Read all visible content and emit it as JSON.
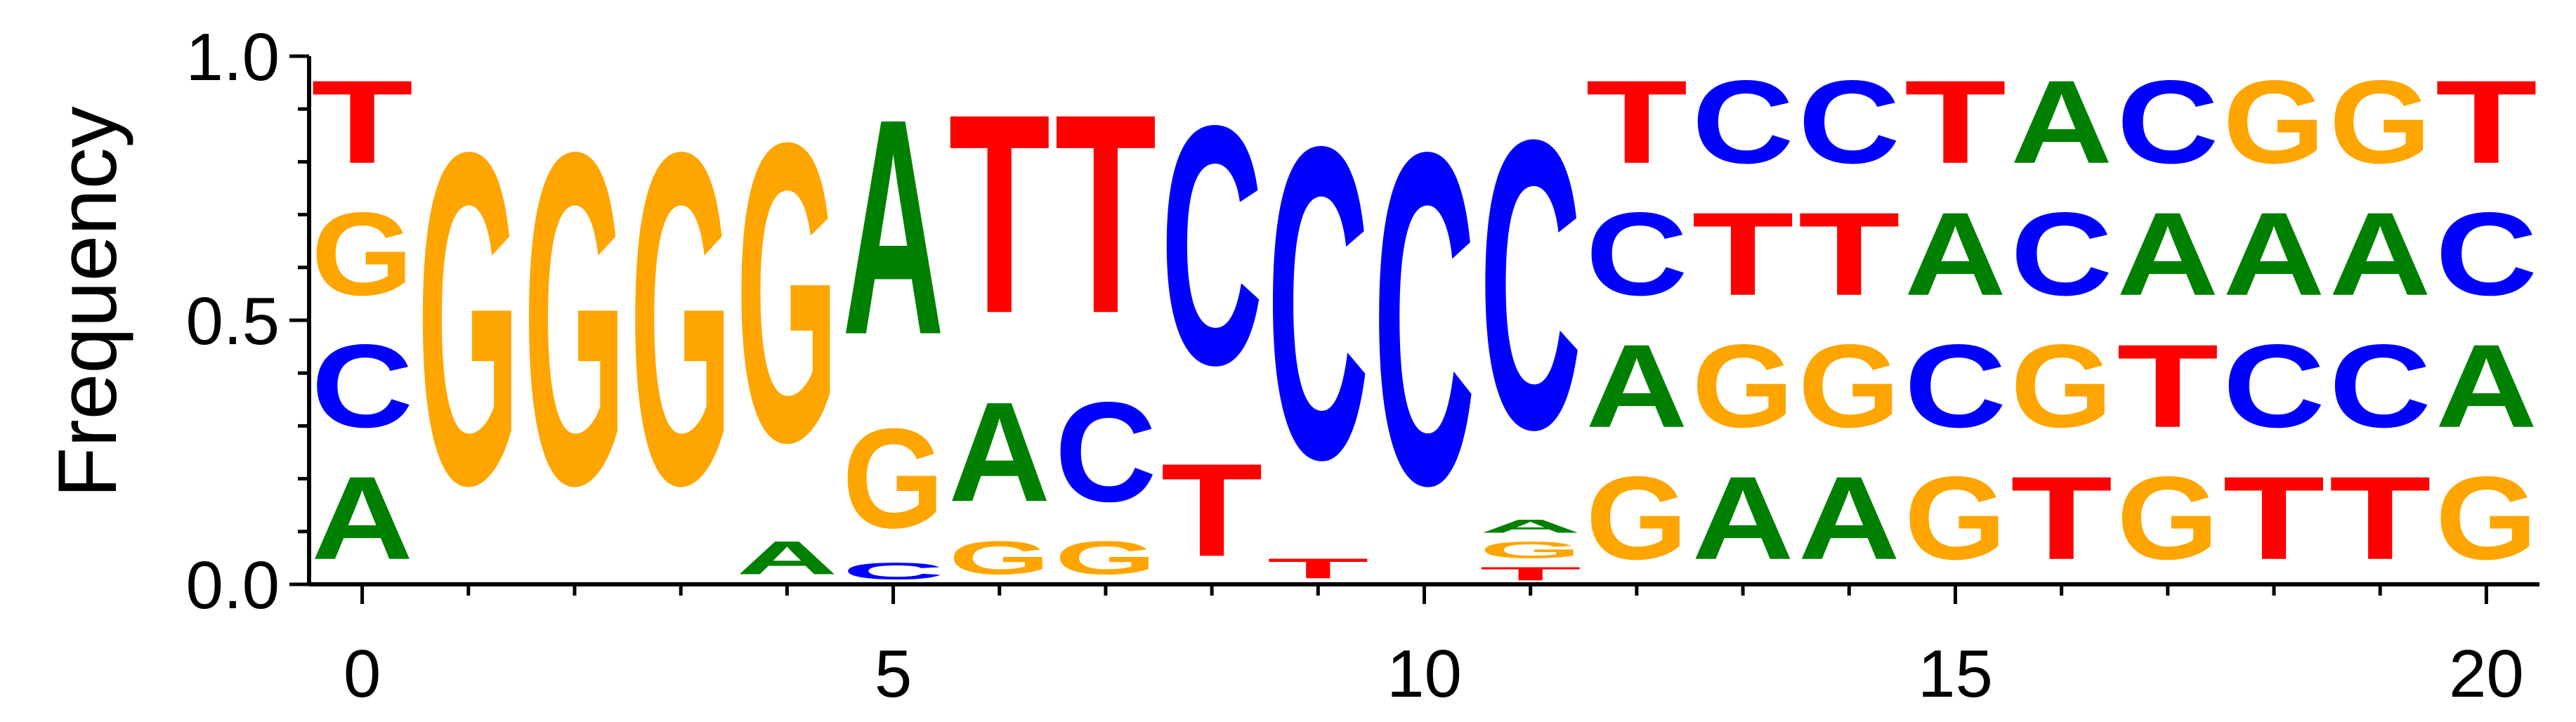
{
  "chart_data": {
    "type": "sequence-logo",
    "ylabel": "Frequency",
    "xlabel": "",
    "ylim": [
      0,
      1
    ],
    "xlim": [
      -0.5,
      20.5
    ],
    "y_ticks": [
      "0.0",
      "0.5",
      "1.0"
    ],
    "x_ticks": [
      "0",
      "5",
      "10",
      "15",
      "20"
    ],
    "colors": {
      "A": "#008000",
      "C": "#0000ff",
      "G": "#ffa500",
      "T": "#ff0000"
    },
    "positions": [
      {
        "pos": 0,
        "letters": [
          {
            "base": "A",
            "freq": 0.25
          },
          {
            "base": "C",
            "freq": 0.25
          },
          {
            "base": "G",
            "freq": 0.25
          },
          {
            "base": "T",
            "freq": 0.25
          }
        ]
      },
      {
        "pos": 1,
        "letters": [
          {
            "base": "G",
            "freq": 1.0
          }
        ]
      },
      {
        "pos": 2,
        "letters": [
          {
            "base": "G",
            "freq": 1.0
          }
        ]
      },
      {
        "pos": 3,
        "letters": [
          {
            "base": "G",
            "freq": 1.0
          }
        ]
      },
      {
        "pos": 4,
        "letters": [
          {
            "base": "A",
            "freq": 0.1
          },
          {
            "base": "G",
            "freq": 0.9
          }
        ]
      },
      {
        "pos": 5,
        "letters": [
          {
            "base": "C",
            "freq": 0.05
          },
          {
            "base": "G",
            "freq": 0.3
          },
          {
            "base": "A",
            "freq": 0.65
          }
        ]
      },
      {
        "pos": 6,
        "letters": [
          {
            "base": "G",
            "freq": 0.1
          },
          {
            "base": "A",
            "freq": 0.3
          },
          {
            "base": "T",
            "freq": 0.6
          }
        ]
      },
      {
        "pos": 7,
        "letters": [
          {
            "base": "G",
            "freq": 0.1
          },
          {
            "base": "C",
            "freq": 0.3
          },
          {
            "base": "T",
            "freq": 0.6
          }
        ]
      },
      {
        "pos": 8,
        "letters": [
          {
            "base": "T",
            "freq": 0.28
          },
          {
            "base": "C",
            "freq": 0.72
          }
        ]
      },
      {
        "pos": 9,
        "letters": [
          {
            "base": "T",
            "freq": 0.06
          },
          {
            "base": "C",
            "freq": 0.94
          }
        ]
      },
      {
        "pos": 10,
        "letters": [
          {
            "base": "C",
            "freq": 1.0
          }
        ]
      },
      {
        "pos": 11,
        "letters": [
          {
            "base": "T",
            "freq": 0.04
          },
          {
            "base": "G",
            "freq": 0.05
          },
          {
            "base": "A",
            "freq": 0.04
          },
          {
            "base": "C",
            "freq": 0.87
          }
        ]
      },
      {
        "pos": 12,
        "letters": [
          {
            "base": "G",
            "freq": 0.25
          },
          {
            "base": "A",
            "freq": 0.25
          },
          {
            "base": "C",
            "freq": 0.25
          },
          {
            "base": "T",
            "freq": 0.25
          }
        ]
      },
      {
        "pos": 13,
        "letters": [
          {
            "base": "A",
            "freq": 0.25
          },
          {
            "base": "G",
            "freq": 0.25
          },
          {
            "base": "T",
            "freq": 0.25
          },
          {
            "base": "C",
            "freq": 0.25
          }
        ]
      },
      {
        "pos": 14,
        "letters": [
          {
            "base": "A",
            "freq": 0.25
          },
          {
            "base": "G",
            "freq": 0.25
          },
          {
            "base": "T",
            "freq": 0.25
          },
          {
            "base": "C",
            "freq": 0.25
          }
        ]
      },
      {
        "pos": 15,
        "letters": [
          {
            "base": "G",
            "freq": 0.25
          },
          {
            "base": "C",
            "freq": 0.25
          },
          {
            "base": "A",
            "freq": 0.25
          },
          {
            "base": "T",
            "freq": 0.25
          }
        ]
      },
      {
        "pos": 16,
        "letters": [
          {
            "base": "T",
            "freq": 0.25
          },
          {
            "base": "G",
            "freq": 0.25
          },
          {
            "base": "C",
            "freq": 0.25
          },
          {
            "base": "A",
            "freq": 0.25
          }
        ]
      },
      {
        "pos": 17,
        "letters": [
          {
            "base": "G",
            "freq": 0.25
          },
          {
            "base": "T",
            "freq": 0.25
          },
          {
            "base": "A",
            "freq": 0.25
          },
          {
            "base": "C",
            "freq": 0.25
          }
        ]
      },
      {
        "pos": 18,
        "letters": [
          {
            "base": "T",
            "freq": 0.25
          },
          {
            "base": "C",
            "freq": 0.25
          },
          {
            "base": "A",
            "freq": 0.25
          },
          {
            "base": "G",
            "freq": 0.25
          }
        ]
      },
      {
        "pos": 19,
        "letters": [
          {
            "base": "T",
            "freq": 0.25
          },
          {
            "base": "C",
            "freq": 0.25
          },
          {
            "base": "A",
            "freq": 0.25
          },
          {
            "base": "G",
            "freq": 0.25
          }
        ]
      },
      {
        "pos": 20,
        "letters": [
          {
            "base": "G",
            "freq": 0.25
          },
          {
            "base": "A",
            "freq": 0.25
          },
          {
            "base": "C",
            "freq": 0.25
          },
          {
            "base": "T",
            "freq": 0.25
          }
        ]
      }
    ]
  }
}
